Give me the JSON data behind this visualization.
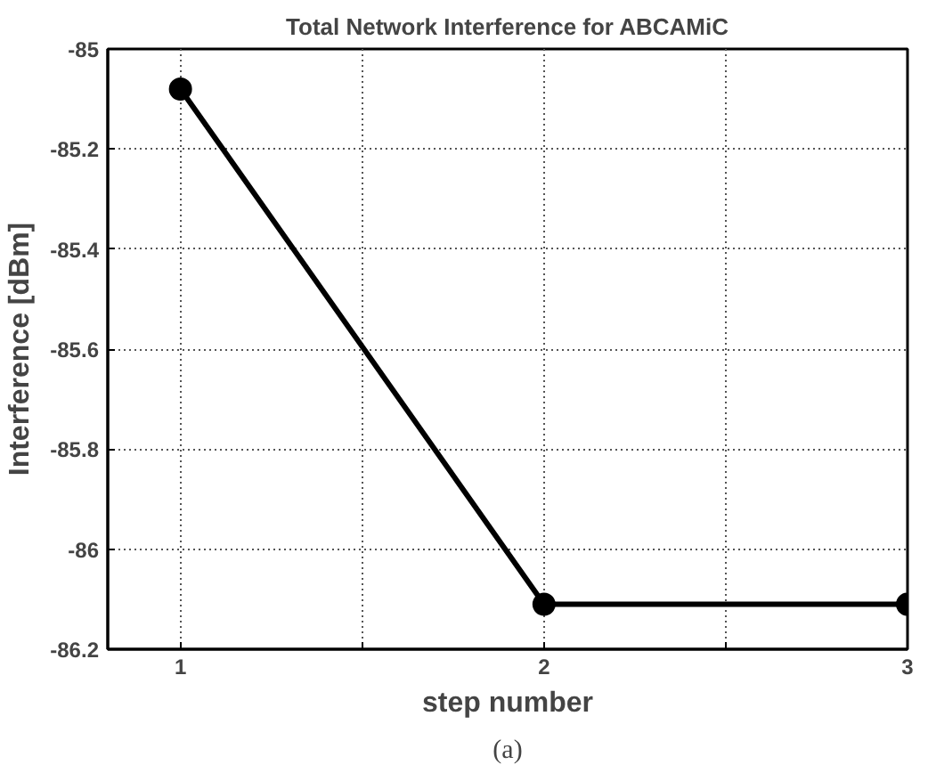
{
  "chart_data": {
    "type": "line",
    "title": "Total Network Interference for ABCAMiC",
    "xlabel": "step number",
    "ylabel": "Interference [dBm]",
    "annotations": [
      "(a)"
    ],
    "x": [
      1,
      2,
      3
    ],
    "series": [
      {
        "color": "#000000",
        "values": [
          -85.08,
          -86.11,
          -86.11
        ]
      }
    ],
    "xlim": [
      0.8,
      3
    ],
    "ylim": [
      -86.2,
      -85
    ],
    "xticks": [
      1,
      {
        "value": 1.5,
        "label": null
      },
      2,
      {
        "value": 2.5,
        "label": null
      },
      3
    ],
    "yticks": [
      -86.2,
      -86,
      -85.8,
      -85.6,
      -85.4,
      -85.2,
      -85
    ],
    "grid": true,
    "marker": "circle",
    "line_style": "solid"
  }
}
